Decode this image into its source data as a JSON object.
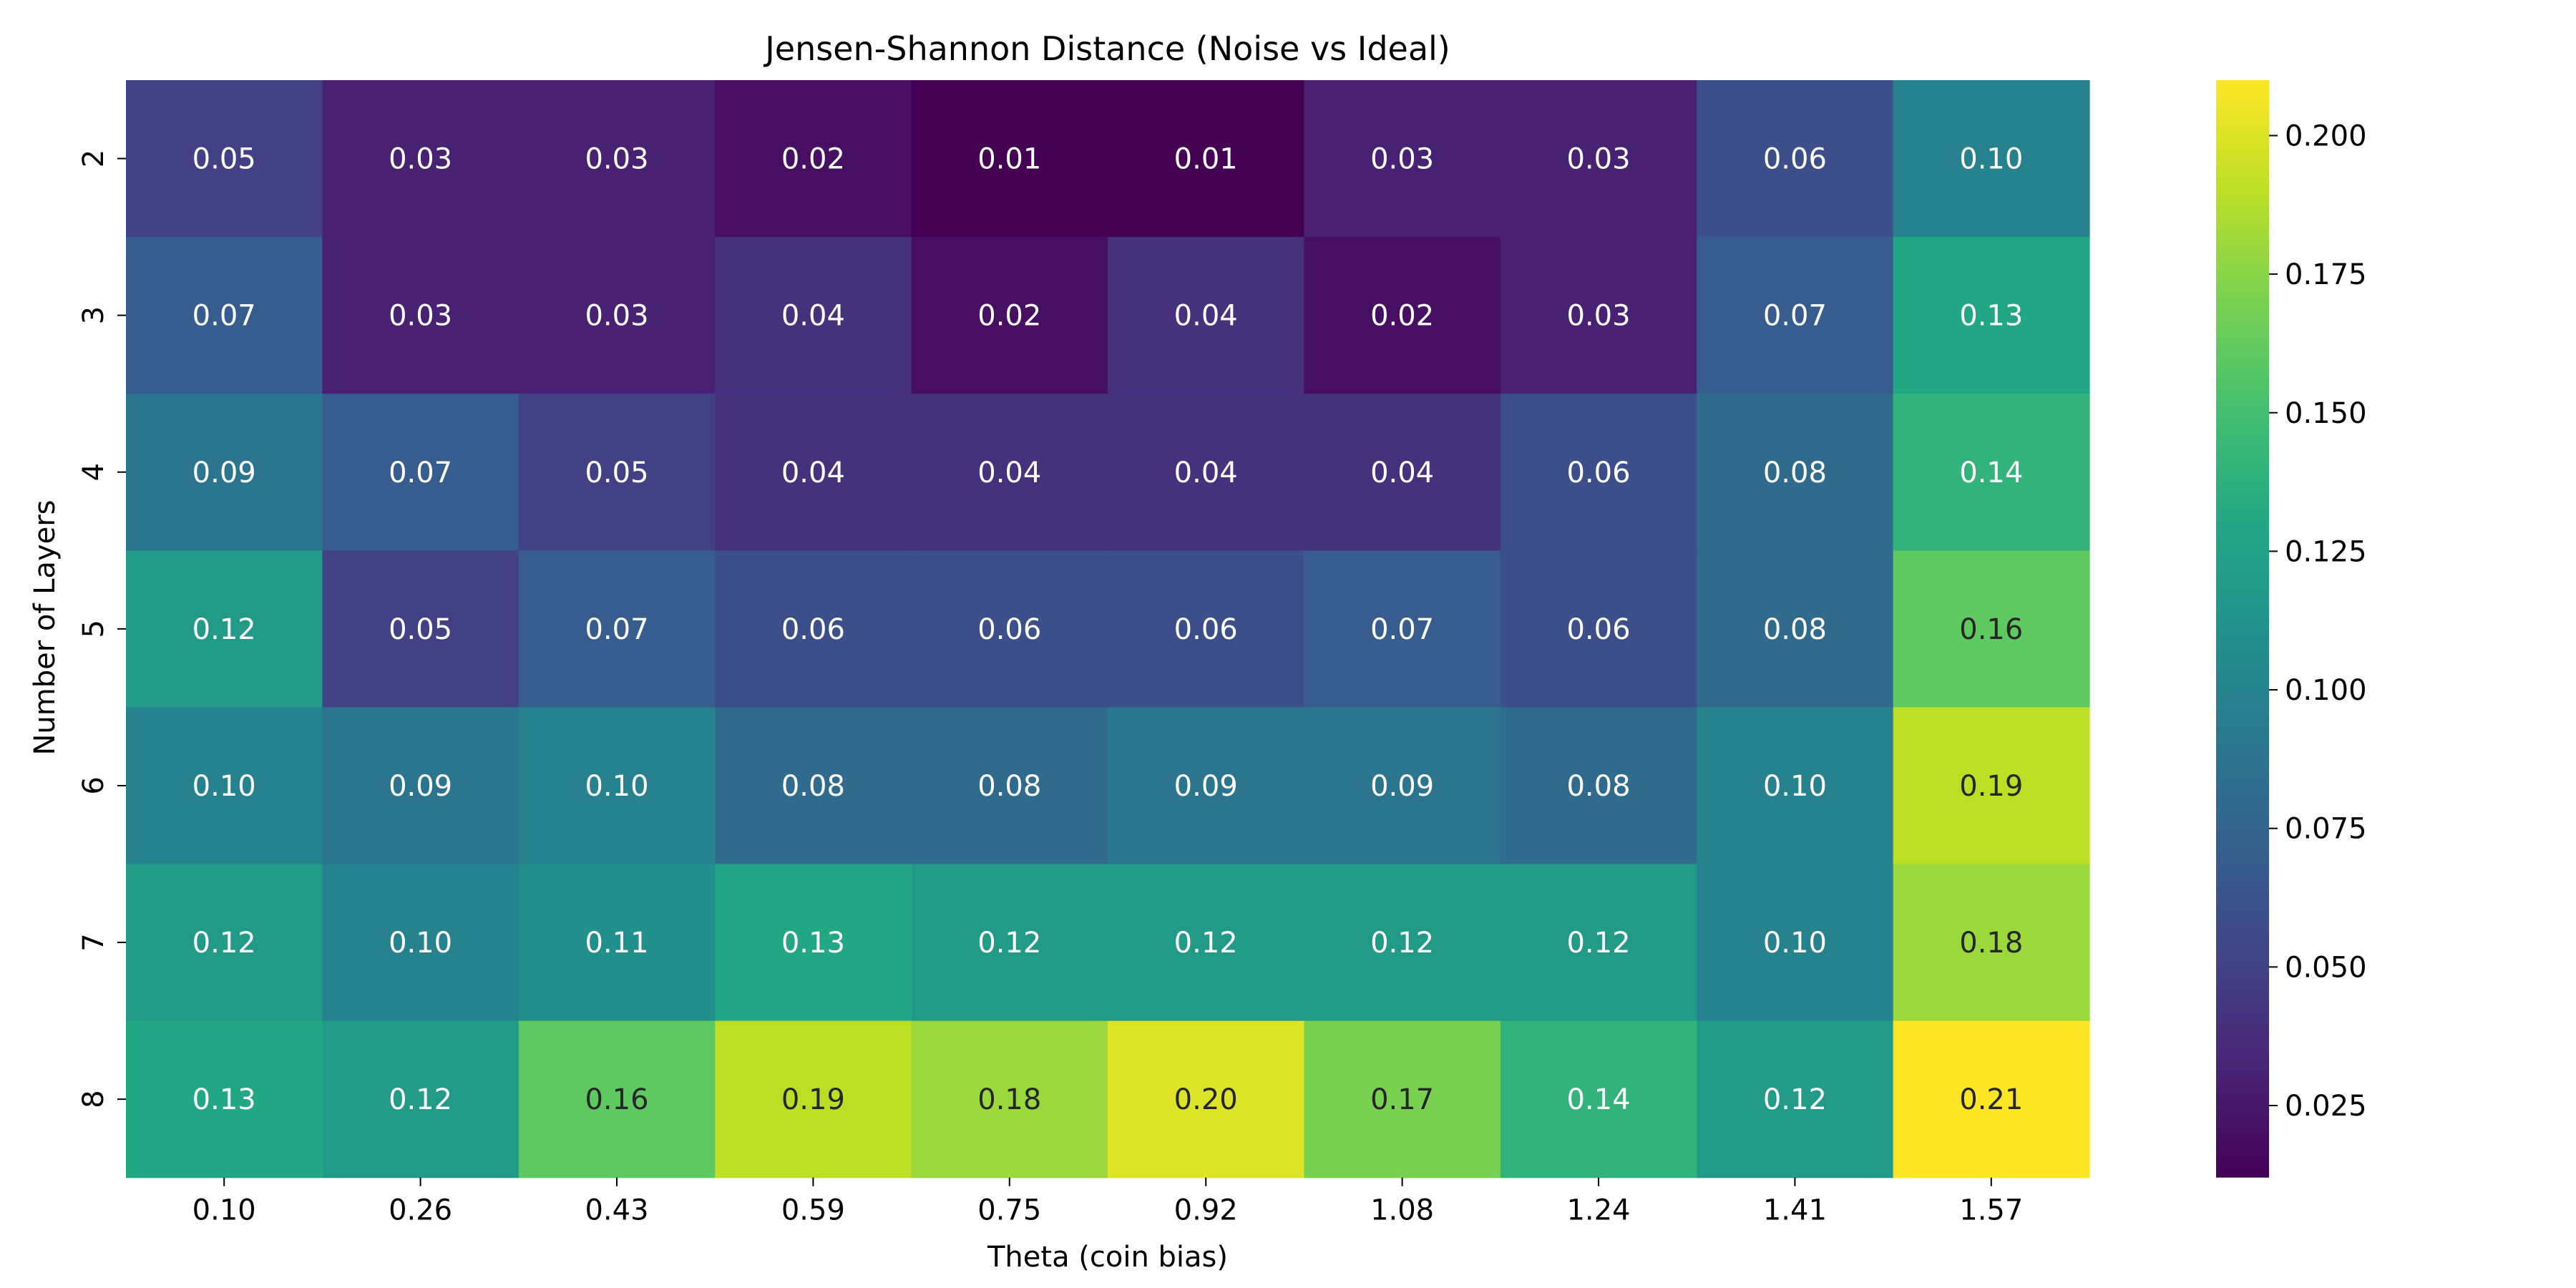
{
  "chart_data": {
    "type": "heatmap",
    "title": "Jensen-Shannon Distance (Noise vs Ideal)",
    "xlabel": "Theta (coin bias)",
    "ylabel": "Number of Layers",
    "x_categories": [
      "0.10",
      "0.26",
      "0.43",
      "0.59",
      "0.75",
      "0.92",
      "1.08",
      "1.24",
      "1.41",
      "1.57"
    ],
    "y_categories": [
      "2",
      "3",
      "4",
      "5",
      "6",
      "7",
      "8"
    ],
    "values": [
      [
        0.05,
        0.03,
        0.03,
        0.02,
        0.01,
        0.01,
        0.03,
        0.03,
        0.06,
        0.1
      ],
      [
        0.07,
        0.03,
        0.03,
        0.04,
        0.02,
        0.04,
        0.02,
        0.03,
        0.07,
        0.13
      ],
      [
        0.09,
        0.07,
        0.05,
        0.04,
        0.04,
        0.04,
        0.04,
        0.06,
        0.08,
        0.14
      ],
      [
        0.12,
        0.05,
        0.07,
        0.06,
        0.06,
        0.06,
        0.07,
        0.06,
        0.08,
        0.16
      ],
      [
        0.1,
        0.09,
        0.1,
        0.08,
        0.08,
        0.09,
        0.09,
        0.08,
        0.1,
        0.19
      ],
      [
        0.12,
        0.1,
        0.11,
        0.13,
        0.12,
        0.12,
        0.12,
        0.12,
        0.1,
        0.18
      ],
      [
        0.13,
        0.12,
        0.16,
        0.19,
        0.18,
        0.2,
        0.17,
        0.14,
        0.12,
        0.21
      ]
    ],
    "cell_labels": [
      [
        "0.05",
        "0.03",
        "0.03",
        "0.02",
        "0.01",
        "0.01",
        "0.03",
        "0.03",
        "0.06",
        "0.10"
      ],
      [
        "0.07",
        "0.03",
        "0.03",
        "0.04",
        "0.02",
        "0.04",
        "0.02",
        "0.03",
        "0.07",
        "0.13"
      ],
      [
        "0.09",
        "0.07",
        "0.05",
        "0.04",
        "0.04",
        "0.04",
        "0.04",
        "0.06",
        "0.08",
        "0.14"
      ],
      [
        "0.12",
        "0.05",
        "0.07",
        "0.06",
        "0.06",
        "0.06",
        "0.07",
        "0.06",
        "0.08",
        "0.16"
      ],
      [
        "0.10",
        "0.09",
        "0.10",
        "0.08",
        "0.08",
        "0.09",
        "0.09",
        "0.08",
        "0.10",
        "0.19"
      ],
      [
        "0.12",
        "0.10",
        "0.11",
        "0.13",
        "0.12",
        "0.12",
        "0.12",
        "0.12",
        "0.10",
        "0.18"
      ],
      [
        "0.13",
        "0.12",
        "0.16",
        "0.19",
        "0.18",
        "0.20",
        "0.17",
        "0.14",
        "0.12",
        "0.21"
      ]
    ],
    "colormap": "viridis",
    "color_range": [
      0.012,
      0.21
    ],
    "colorbar_ticks": [
      0.025,
      0.05,
      0.075,
      0.1,
      0.125,
      0.15,
      0.175,
      0.2
    ],
    "colorbar_tick_labels": [
      "0.025",
      "0.050",
      "0.075",
      "0.100",
      "0.125",
      "0.150",
      "0.175",
      "0.200"
    ],
    "colorbar_position": "right",
    "grid": false
  }
}
